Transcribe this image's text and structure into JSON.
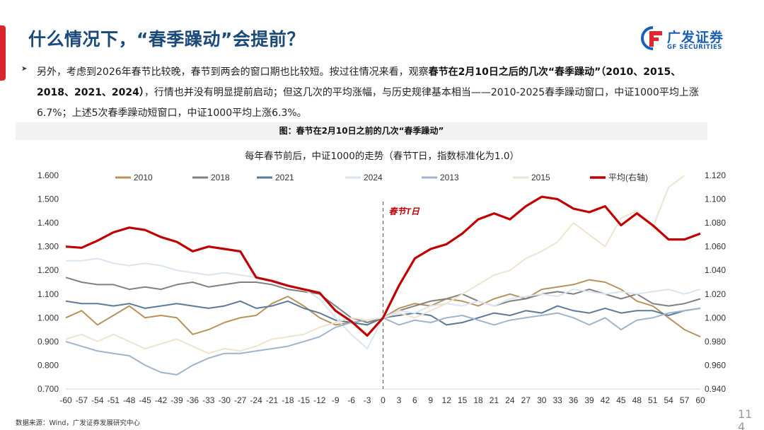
{
  "header": {
    "title": "什么情况下，“春季躁动”会提前？",
    "logo_cn": "广发证券",
    "logo_en": "GF SECURITIES"
  },
  "body": {
    "bullet_icon": "arrow-bullet-icon",
    "text_1": "另外，考虑到2026年春节比较晚，春节到两会的窗口期也比较短。按过往情况来看，观察",
    "text_bold": "春节在2月10日之后的几次“春季躁动”（2010、2015、2018、2021、2024）",
    "text_2": "，行情也并没有明显提前启动；但这几次的平均涨幅，与历史规律基本相当——2010-2025春季躁动窗口，中证1000平均上涨6.7%；上述5次春季躁动短窗口，中证1000平均上涨6.3%。"
  },
  "figure": {
    "caption": "图：春节在2月10日之前的几次“春季躁动”",
    "source": "数据来源：Wind，广发证券发展研究中心"
  },
  "page_number": "11\n4",
  "chart_data": {
    "type": "line",
    "title": "每年春节前后，中证1000的走势（春节T日，指数标准化为1.0）",
    "annotation": "春节T日",
    "x": [
      -60,
      -57,
      -54,
      -51,
      -48,
      -45,
      -42,
      -39,
      -36,
      -33,
      -30,
      -27,
      -24,
      -21,
      -18,
      -15,
      -12,
      -9,
      -6,
      -3,
      0,
      3,
      6,
      9,
      12,
      15,
      18,
      21,
      24,
      27,
      30,
      33,
      36,
      39,
      42,
      45,
      48,
      51,
      54,
      57,
      60
    ],
    "x_ticks": [
      "-60",
      "-57",
      "-54",
      "-51",
      "-48",
      "-45",
      "-42",
      "-39",
      "-36",
      "-33",
      "-30",
      "-27",
      "-24",
      "-21",
      "-18",
      "-15",
      "-12",
      "-9",
      "-6",
      "-3",
      "0",
      "3",
      "6",
      "9",
      "12",
      "15",
      "18",
      "21",
      "24",
      "27",
      "30",
      "33",
      "36",
      "39",
      "42",
      "45",
      "48",
      "51",
      "54",
      "57",
      "60"
    ],
    "ylim_left": [
      0.7,
      1.6
    ],
    "ylim_right": [
      0.94,
      1.12
    ],
    "y_ticks_left": [
      "0.700",
      "0.800",
      "0.900",
      "1.000",
      "1.100",
      "1.200",
      "1.300",
      "1.400",
      "1.500",
      "1.600"
    ],
    "y_ticks_right": [
      "0.940",
      "0.960",
      "0.980",
      "1.000",
      "1.020",
      "1.040",
      "1.060",
      "1.080",
      "1.100",
      "1.120"
    ],
    "legend_position": "top",
    "grid": false,
    "series": [
      {
        "name": "2010",
        "axis": "left",
        "color": "#b8925a",
        "values": [
          1.0,
          1.03,
          0.97,
          1.01,
          1.05,
          1.0,
          1.01,
          1.0,
          0.93,
          0.95,
          0.98,
          1.0,
          1.01,
          1.06,
          1.09,
          1.05,
          1.0,
          0.97,
          0.98,
          0.97,
          1.0,
          1.04,
          1.06,
          1.05,
          1.08,
          1.07,
          1.05,
          1.08,
          1.1,
          1.08,
          1.12,
          1.13,
          1.14,
          1.16,
          1.15,
          1.12,
          1.07,
          1.05,
          1.0,
          0.95,
          0.92
        ]
      },
      {
        "name": "2018",
        "axis": "left",
        "color": "#808080",
        "values": [
          1.17,
          1.15,
          1.14,
          1.14,
          1.12,
          1.13,
          1.12,
          1.14,
          1.15,
          1.13,
          1.14,
          1.15,
          1.15,
          1.14,
          1.12,
          1.11,
          1.1,
          1.05,
          1.0,
          0.98,
          1.0,
          1.03,
          1.05,
          1.07,
          1.08,
          1.1,
          1.07,
          1.05,
          1.07,
          1.08,
          1.1,
          1.11,
          1.1,
          1.12,
          1.1,
          1.08,
          1.1,
          1.06,
          1.05,
          1.06,
          1.08
        ]
      },
      {
        "name": "2021",
        "axis": "left",
        "color": "#5b7a99",
        "values": [
          1.07,
          1.06,
          1.06,
          1.05,
          1.06,
          1.04,
          1.05,
          1.06,
          1.05,
          1.04,
          1.05,
          1.07,
          1.04,
          1.05,
          1.07,
          1.04,
          1.02,
          0.99,
          0.98,
          0.97,
          1.0,
          1.01,
          1.02,
          1.01,
          0.97,
          0.98,
          1.0,
          1.02,
          1.01,
          1.03,
          1.02,
          1.05,
          1.03,
          1.02,
          1.04,
          1.02,
          1.03,
          1.03,
          1.01,
          1.03,
          1.04
        ]
      },
      {
        "name": "2024",
        "axis": "left",
        "color": "#dbe5f1",
        "values": [
          1.24,
          1.24,
          1.25,
          1.23,
          1.22,
          1.23,
          1.22,
          1.2,
          1.19,
          1.18,
          1.19,
          1.18,
          1.17,
          1.16,
          1.14,
          1.12,
          1.08,
          1.0,
          0.93,
          0.87,
          1.0,
          1.03,
          1.02,
          1.05,
          1.06,
          1.05,
          1.07,
          1.05,
          1.08,
          1.09,
          1.1,
          1.09,
          1.12,
          1.11,
          1.1,
          1.11,
          1.1,
          1.11,
          1.12,
          1.1,
          1.12
        ]
      },
      {
        "name": "2013",
        "axis": "left",
        "color": "#9fb4cc",
        "values": [
          0.9,
          0.88,
          0.86,
          0.85,
          0.84,
          0.8,
          0.77,
          0.76,
          0.8,
          0.83,
          0.85,
          0.85,
          0.86,
          0.87,
          0.88,
          0.9,
          0.92,
          0.96,
          0.98,
          0.99,
          1.0,
          0.97,
          0.99,
          0.98,
          1.0,
          1.01,
          0.99,
          0.97,
          0.99,
          1.0,
          1.01,
          1.02,
          1.0,
          0.97,
          1.0,
          0.95,
          0.99,
          1.0,
          1.02,
          1.03,
          1.04
        ]
      },
      {
        "name": "2015",
        "axis": "left",
        "color": "#efe4cf",
        "values": [
          0.91,
          0.93,
          0.9,
          0.93,
          0.9,
          0.87,
          0.89,
          0.91,
          0.88,
          0.85,
          0.87,
          0.86,
          0.88,
          0.91,
          0.92,
          0.93,
          0.96,
          0.98,
          1.0,
          0.99,
          1.0,
          1.02,
          1.0,
          1.03,
          1.06,
          1.1,
          1.14,
          1.18,
          1.2,
          1.25,
          1.28,
          1.32,
          1.4,
          1.35,
          1.3,
          1.42,
          1.45,
          1.38,
          1.55,
          1.6,
          null
        ]
      },
      {
        "name": "平均(右轴)",
        "axis": "right",
        "color": "#c00000",
        "values": [
          1.06,
          1.059,
          1.065,
          1.072,
          1.076,
          1.074,
          1.068,
          1.064,
          1.056,
          1.06,
          1.058,
          1.056,
          1.034,
          1.031,
          1.027,
          1.024,
          1.021,
          1.006,
          0.997,
          0.985,
          1.0,
          1.027,
          1.05,
          1.058,
          1.062,
          1.071,
          1.083,
          1.088,
          1.083,
          1.094,
          1.102,
          1.1,
          1.092,
          1.089,
          1.094,
          1.078,
          1.088,
          1.078,
          1.066,
          1.066,
          1.071
        ]
      }
    ]
  }
}
